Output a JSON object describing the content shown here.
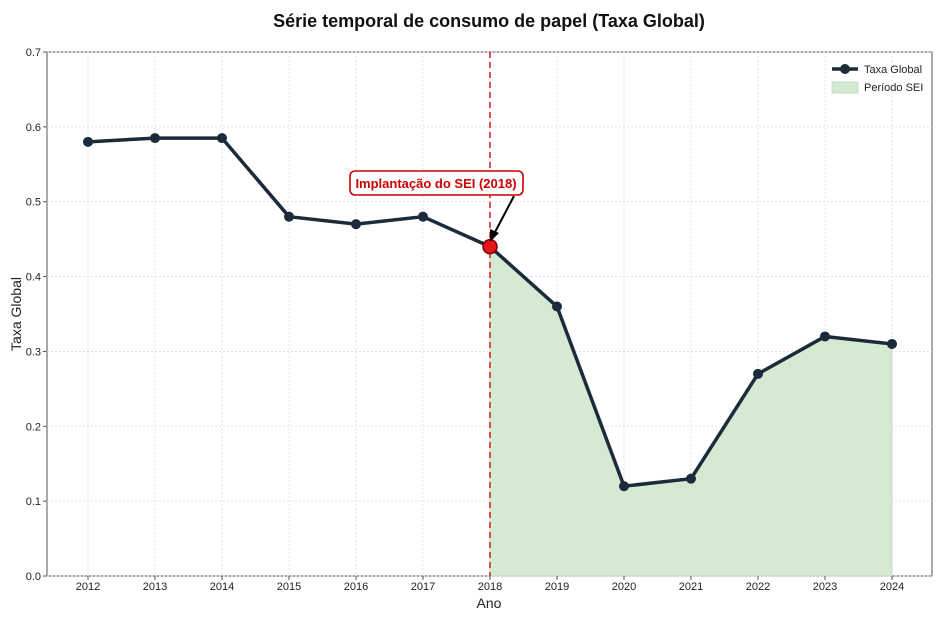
{
  "chart_data": {
    "type": "line",
    "title": "Série temporal de consumo de papel (Taxa Global)",
    "xlabel": "Ano",
    "ylabel": "Taxa Global",
    "x": [
      2012,
      2013,
      2014,
      2015,
      2016,
      2017,
      2018,
      2019,
      2020,
      2021,
      2022,
      2023,
      2024
    ],
    "series": [
      {
        "name": "Taxa Global",
        "values": [
          0.58,
          0.585,
          0.585,
          0.48,
          0.47,
          0.48,
          0.44,
          0.36,
          0.12,
          0.13,
          0.27,
          0.32,
          0.31
        ],
        "color": "#1c2b3a"
      }
    ],
    "shaded_region": {
      "name": "Período SEI",
      "from": 2018,
      "to": 2024,
      "color": "#d5ead3"
    },
    "vline": {
      "x": 2018,
      "color": "#d62728",
      "style": "dashed"
    },
    "annotation": {
      "text": "Implantação do SEI (2018)",
      "x": 2018,
      "y": 0.44,
      "color": "#cc0000"
    },
    "ylim": [
      0.0,
      0.7
    ],
    "yticks": [
      "0.0",
      "0.1",
      "0.2",
      "0.3",
      "0.4",
      "0.5",
      "0.6",
      "0.7"
    ],
    "grid": true,
    "legend_position": "top-right"
  }
}
